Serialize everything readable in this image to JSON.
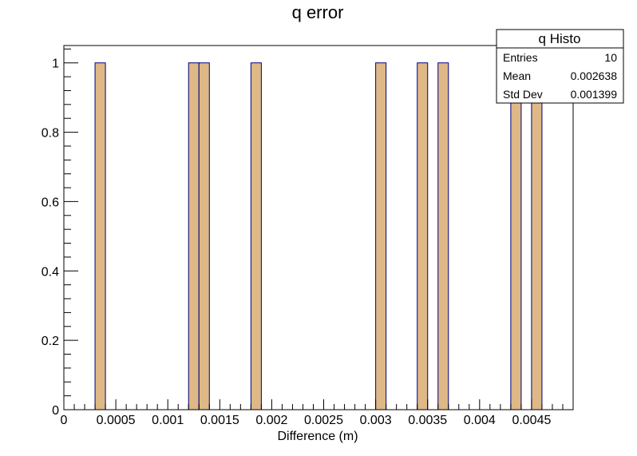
{
  "chart_data": {
    "type": "bar",
    "title": "q error",
    "xlabel": "Difference (m)",
    "ylabel": "",
    "xlim": [
      0,
      0.0049
    ],
    "ylim": [
      0,
      1.05
    ],
    "bin_width": 0.0001,
    "x_ticks": [
      {
        "value": 0,
        "label": "0"
      },
      {
        "value": 0.0005,
        "label": "0.0005"
      },
      {
        "value": 0.001,
        "label": "0.001"
      },
      {
        "value": 0.0015,
        "label": "0.0015"
      },
      {
        "value": 0.002,
        "label": "0.002"
      },
      {
        "value": 0.0025,
        "label": "0.0025"
      },
      {
        "value": 0.003,
        "label": "0.003"
      },
      {
        "value": 0.0035,
        "label": "0.0035"
      },
      {
        "value": 0.004,
        "label": "0.004"
      },
      {
        "value": 0.0045,
        "label": "0.0045"
      }
    ],
    "y_ticks": [
      {
        "value": 0,
        "label": "0"
      },
      {
        "value": 0.2,
        "label": "0.2"
      },
      {
        "value": 0.4,
        "label": "0.4"
      },
      {
        "value": 0.6,
        "label": "0.6"
      },
      {
        "value": 0.8,
        "label": "0.8"
      },
      {
        "value": 1,
        "label": "1"
      }
    ],
    "bins": [
      {
        "low": 0.0003,
        "high": 0.0004,
        "value": 1
      },
      {
        "low": 0.0012,
        "high": 0.0013,
        "value": 1
      },
      {
        "low": 0.0013,
        "high": 0.0014,
        "value": 1
      },
      {
        "low": 0.0018,
        "high": 0.0019,
        "value": 1
      },
      {
        "low": 0.003,
        "high": 0.0031,
        "value": 1
      },
      {
        "low": 0.0034,
        "high": 0.0035,
        "value": 1
      },
      {
        "low": 0.0036,
        "high": 0.0037,
        "value": 1
      },
      {
        "low": 0.0043,
        "high": 0.0044,
        "value": 1
      },
      {
        "low": 0.0045,
        "high": 0.0046,
        "value": 1
      }
    ],
    "colors": {
      "fill": "#deb887",
      "outline": "#000080",
      "frame": "#000000"
    },
    "grid": false,
    "stats_box": {
      "title": "q Histo",
      "placement": "top-right",
      "rows": [
        {
          "label": "Entries",
          "value": "10"
        },
        {
          "label": "Mean",
          "value": "0.002638"
        },
        {
          "label": "Std Dev",
          "value": "0.001399"
        }
      ]
    }
  }
}
